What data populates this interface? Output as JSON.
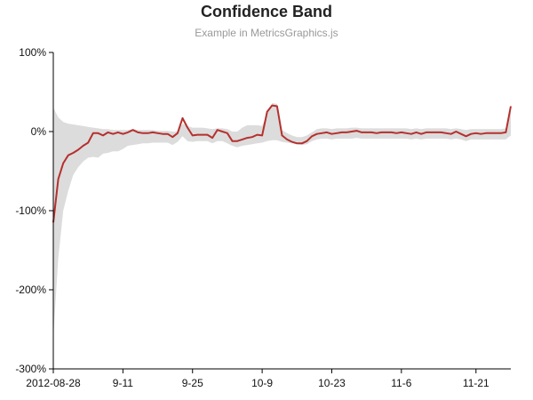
{
  "chart_data": {
    "type": "area",
    "title": "Confidence Band",
    "subtitle": "Example in MetricsGraphics.js",
    "xlabel": "",
    "ylabel": "",
    "x_start": "2012-08-28",
    "x_end": "2012-11-28",
    "ylim": [
      -3,
      1
    ],
    "y_format": "percent",
    "y_ticks": [
      -3,
      -2,
      -1,
      0,
      1
    ],
    "y_tick_labels": [
      "-300%",
      "-200%",
      "-100%",
      "0%",
      "100%"
    ],
    "x_ticks": [
      "2012-08-28",
      "2012-09-11",
      "2012-09-25",
      "2012-10-09",
      "2012-10-23",
      "2012-11-06",
      "2012-11-21"
    ],
    "x_tick_labels": [
      "2012-08-28",
      "9-11",
      "9-25",
      "10-9",
      "10-23",
      "11-6",
      "11-21"
    ],
    "grid": false,
    "legend": "none",
    "colors": {
      "line": "#b5302e",
      "band": "#dcdcdc",
      "axis": "#000000"
    },
    "series": [
      {
        "x": [
          "2012-08-28",
          "2012-08-29",
          "2012-08-30",
          "2012-08-31",
          "2012-09-01",
          "2012-09-02",
          "2012-09-03",
          "2012-09-04",
          "2012-09-05",
          "2012-09-06",
          "2012-09-07",
          "2012-09-08",
          "2012-09-09",
          "2012-09-10",
          "2012-09-11",
          "2012-09-12",
          "2012-09-13",
          "2012-09-14",
          "2012-09-15",
          "2012-09-16",
          "2012-09-17",
          "2012-09-18",
          "2012-09-19",
          "2012-09-20",
          "2012-09-21",
          "2012-09-22",
          "2012-09-23",
          "2012-09-24",
          "2012-09-25",
          "2012-09-26",
          "2012-09-27",
          "2012-09-28",
          "2012-09-29",
          "2012-09-30",
          "2012-10-01",
          "2012-10-02",
          "2012-10-03",
          "2012-10-04",
          "2012-10-05",
          "2012-10-06",
          "2012-10-07",
          "2012-10-08",
          "2012-10-09",
          "2012-10-10",
          "2012-10-11",
          "2012-10-12",
          "2012-10-13",
          "2012-10-14",
          "2012-10-15",
          "2012-10-16",
          "2012-10-17",
          "2012-10-18",
          "2012-10-19",
          "2012-10-20",
          "2012-10-21",
          "2012-10-22",
          "2012-10-23",
          "2012-10-24",
          "2012-10-25",
          "2012-10-26",
          "2012-10-27",
          "2012-10-28",
          "2012-10-29",
          "2012-10-30",
          "2012-10-31",
          "2012-11-01",
          "2012-11-02",
          "2012-11-03",
          "2012-11-04",
          "2012-11-05",
          "2012-11-06",
          "2012-11-07",
          "2012-11-08",
          "2012-11-09",
          "2012-11-10",
          "2012-11-11",
          "2012-11-12",
          "2012-11-13",
          "2012-11-14",
          "2012-11-15",
          "2012-11-16",
          "2012-11-17",
          "2012-11-18",
          "2012-11-19",
          "2012-11-20",
          "2012-11-21",
          "2012-11-22",
          "2012-11-23",
          "2012-11-24",
          "2012-11-25",
          "2012-11-26",
          "2012-11-27",
          "2012-11-28"
        ],
        "value": [
          -1.15,
          -0.6,
          -0.4,
          -0.3,
          -0.27,
          -0.23,
          -0.18,
          -0.14,
          -0.02,
          -0.02,
          -0.05,
          -0.01,
          -0.03,
          -0.01,
          -0.03,
          -0.01,
          0.02,
          -0.01,
          -0.02,
          -0.02,
          -0.01,
          -0.02,
          -0.03,
          -0.03,
          -0.07,
          -0.02,
          0.17,
          0.05,
          -0.05,
          -0.04,
          -0.04,
          -0.04,
          -0.08,
          0.02,
          0.0,
          -0.02,
          -0.12,
          -0.12,
          -0.1,
          -0.08,
          -0.07,
          -0.04,
          -0.05,
          0.25,
          0.33,
          0.32,
          -0.05,
          -0.1,
          -0.13,
          -0.15,
          -0.15,
          -0.12,
          -0.06,
          -0.03,
          -0.02,
          -0.01,
          -0.03,
          -0.02,
          -0.01,
          -0.01,
          0.0,
          0.01,
          -0.01,
          -0.01,
          -0.01,
          -0.02,
          -0.01,
          -0.01,
          -0.01,
          -0.02,
          -0.01,
          -0.02,
          -0.03,
          -0.01,
          -0.03,
          -0.01,
          -0.01,
          -0.01,
          -0.01,
          -0.02,
          -0.03,
          0.0,
          -0.03,
          -0.06,
          -0.03,
          -0.02,
          -0.03,
          -0.02,
          -0.02,
          -0.02,
          -0.02,
          -0.01,
          0.32
        ],
        "lower": [
          -2.6,
          -1.6,
          -1.0,
          -0.75,
          -0.55,
          -0.45,
          -0.38,
          -0.33,
          -0.32,
          -0.33,
          -0.28,
          -0.27,
          -0.25,
          -0.25,
          -0.22,
          -0.18,
          -0.17,
          -0.16,
          -0.15,
          -0.15,
          -0.14,
          -0.14,
          -0.14,
          -0.14,
          -0.17,
          -0.13,
          -0.06,
          -0.12,
          -0.13,
          -0.12,
          -0.12,
          -0.12,
          -0.15,
          -0.12,
          -0.12,
          -0.15,
          -0.18,
          -0.2,
          -0.18,
          -0.17,
          -0.16,
          -0.15,
          -0.14,
          -0.12,
          -0.11,
          -0.11,
          -0.13,
          -0.14,
          -0.15,
          -0.16,
          -0.17,
          -0.16,
          -0.12,
          -0.1,
          -0.09,
          -0.09,
          -0.1,
          -0.09,
          -0.09,
          -0.09,
          -0.09,
          -0.08,
          -0.09,
          -0.09,
          -0.09,
          -0.09,
          -0.09,
          -0.09,
          -0.09,
          -0.09,
          -0.09,
          -0.09,
          -0.1,
          -0.09,
          -0.1,
          -0.09,
          -0.09,
          -0.09,
          -0.09,
          -0.09,
          -0.1,
          -0.09,
          -0.1,
          -0.12,
          -0.1,
          -0.1,
          -0.1,
          -0.1,
          -0.1,
          -0.1,
          -0.1,
          -0.1,
          -0.05
        ],
        "upper": [
          0.3,
          0.18,
          0.12,
          0.1,
          0.09,
          0.08,
          0.07,
          0.06,
          0.05,
          0.04,
          0.03,
          0.03,
          0.02,
          0.02,
          0.02,
          0.02,
          0.03,
          0.02,
          0.02,
          0.02,
          0.02,
          0.01,
          0.01,
          0.01,
          0.0,
          0.0,
          0.1,
          0.07,
          0.05,
          0.05,
          0.05,
          0.04,
          0.03,
          0.04,
          0.04,
          0.03,
          0.0,
          0.0,
          0.05,
          0.08,
          0.08,
          0.08,
          0.07,
          0.22,
          0.36,
          0.35,
          0.02,
          -0.02,
          -0.05,
          -0.07,
          -0.07,
          -0.05,
          -0.01,
          0.03,
          0.04,
          0.04,
          0.03,
          0.04,
          0.04,
          0.04,
          0.05,
          0.05,
          0.04,
          0.04,
          0.04,
          0.04,
          0.04,
          0.04,
          0.04,
          0.04,
          0.04,
          0.04,
          0.03,
          0.04,
          0.03,
          0.04,
          0.04,
          0.04,
          0.04,
          0.04,
          0.03,
          0.04,
          0.03,
          0.02,
          0.03,
          0.03,
          0.03,
          0.03,
          0.03,
          0.03,
          0.03,
          0.04,
          0.3
        ]
      }
    ]
  }
}
